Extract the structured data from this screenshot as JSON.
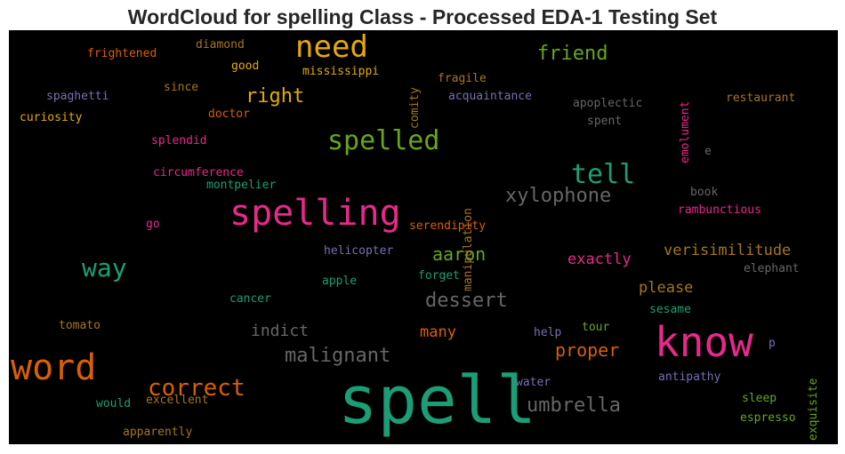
{
  "chart_data": {
    "type": "wordcloud",
    "title": "WordCloud for spelling Class - Processed EDA-1 Testing Set",
    "background": "#000000",
    "colors": {
      "green": "#1b9e77",
      "orange": "#d95f02",
      "purple": "#7570b3",
      "pink": "#e7298a",
      "lime": "#66a61e",
      "gold": "#e6ab02",
      "brown": "#a6761d",
      "gray": "#666666"
    },
    "words": [
      {
        "text": "spell",
        "color": "#1b9e77"
      },
      {
        "text": "word",
        "color": "#d95f02"
      },
      {
        "text": "know",
        "color": "#e7298a"
      },
      {
        "text": "spelling",
        "color": "#e7298a"
      },
      {
        "text": "need",
        "color": "#e6ab02"
      },
      {
        "text": "spelled",
        "color": "#66a61e"
      },
      {
        "text": "tell",
        "color": "#1b9e77"
      },
      {
        "text": "way",
        "color": "#1b9e77"
      },
      {
        "text": "correct",
        "color": "#d95f02"
      },
      {
        "text": "xylophone",
        "color": "#666666"
      },
      {
        "text": "malignant",
        "color": "#666666"
      },
      {
        "text": "umbrella",
        "color": "#666666"
      },
      {
        "text": "dessert",
        "color": "#666666"
      },
      {
        "text": "friend",
        "color": "#66a61e"
      },
      {
        "text": "right",
        "color": "#e6ab02"
      },
      {
        "text": "aaron",
        "color": "#66a61e"
      },
      {
        "text": "proper",
        "color": "#d95f02"
      },
      {
        "text": "indict",
        "color": "#666666"
      },
      {
        "text": "verisimilitude",
        "color": "#a6761d"
      },
      {
        "text": "exactly",
        "color": "#e7298a"
      },
      {
        "text": "please",
        "color": "#a6761d"
      },
      {
        "text": "many",
        "color": "#d95f02"
      },
      {
        "text": "diamond",
        "color": "#a6761d"
      },
      {
        "text": "frightened",
        "color": "#d95f02"
      },
      {
        "text": "good",
        "color": "#e6ab02"
      },
      {
        "text": "mississippi",
        "color": "#e6ab02"
      },
      {
        "text": "comity",
        "color": "#a6761d"
      },
      {
        "text": "fragile",
        "color": "#a6761d"
      },
      {
        "text": "emolument",
        "color": "#e7298a"
      },
      {
        "text": "spaghetti",
        "color": "#7570b3"
      },
      {
        "text": "since",
        "color": "#a6761d"
      },
      {
        "text": "acquaintance",
        "color": "#7570b3"
      },
      {
        "text": "apoplectic",
        "color": "#666666"
      },
      {
        "text": "restaurant",
        "color": "#a6761d"
      },
      {
        "text": "curiosity",
        "color": "#e6ab02"
      },
      {
        "text": "doctor",
        "color": "#d95f02"
      },
      {
        "text": "spent",
        "color": "#666666"
      },
      {
        "text": "splendid",
        "color": "#e7298a"
      },
      {
        "text": "manipulation",
        "color": "#a6761d"
      },
      {
        "text": "e",
        "color": "#666666"
      },
      {
        "text": "circumference",
        "color": "#e7298a"
      },
      {
        "text": "montpelier",
        "color": "#1b9e77"
      },
      {
        "text": "book",
        "color": "#666666"
      },
      {
        "text": "rambunctious",
        "color": "#e7298a"
      },
      {
        "text": "go",
        "color": "#e7298a"
      },
      {
        "text": "serendipity",
        "color": "#d95f02"
      },
      {
        "text": "helicopter",
        "color": "#7570b3"
      },
      {
        "text": "elephant",
        "color": "#666666"
      },
      {
        "text": "apple",
        "color": "#1b9e77"
      },
      {
        "text": "forget",
        "color": "#1b9e77"
      },
      {
        "text": "cancer",
        "color": "#1b9e77"
      },
      {
        "text": "sesame",
        "color": "#1b9e77"
      },
      {
        "text": "exquisite",
        "color": "#66a61e"
      },
      {
        "text": "tomato",
        "color": "#a6761d"
      },
      {
        "text": "help",
        "color": "#7570b3"
      },
      {
        "text": "tour",
        "color": "#66a61e"
      },
      {
        "text": "p",
        "color": "#7570b3"
      },
      {
        "text": "antipathy",
        "color": "#7570b3"
      },
      {
        "text": "water",
        "color": "#7570b3"
      },
      {
        "text": "would",
        "color": "#1b9e77"
      },
      {
        "text": "excellent",
        "color": "#a6761d"
      },
      {
        "text": "sleep",
        "color": "#66a61e"
      },
      {
        "text": "espresso",
        "color": "#66a61e"
      },
      {
        "text": "apparently",
        "color": "#a6761d"
      }
    ]
  }
}
